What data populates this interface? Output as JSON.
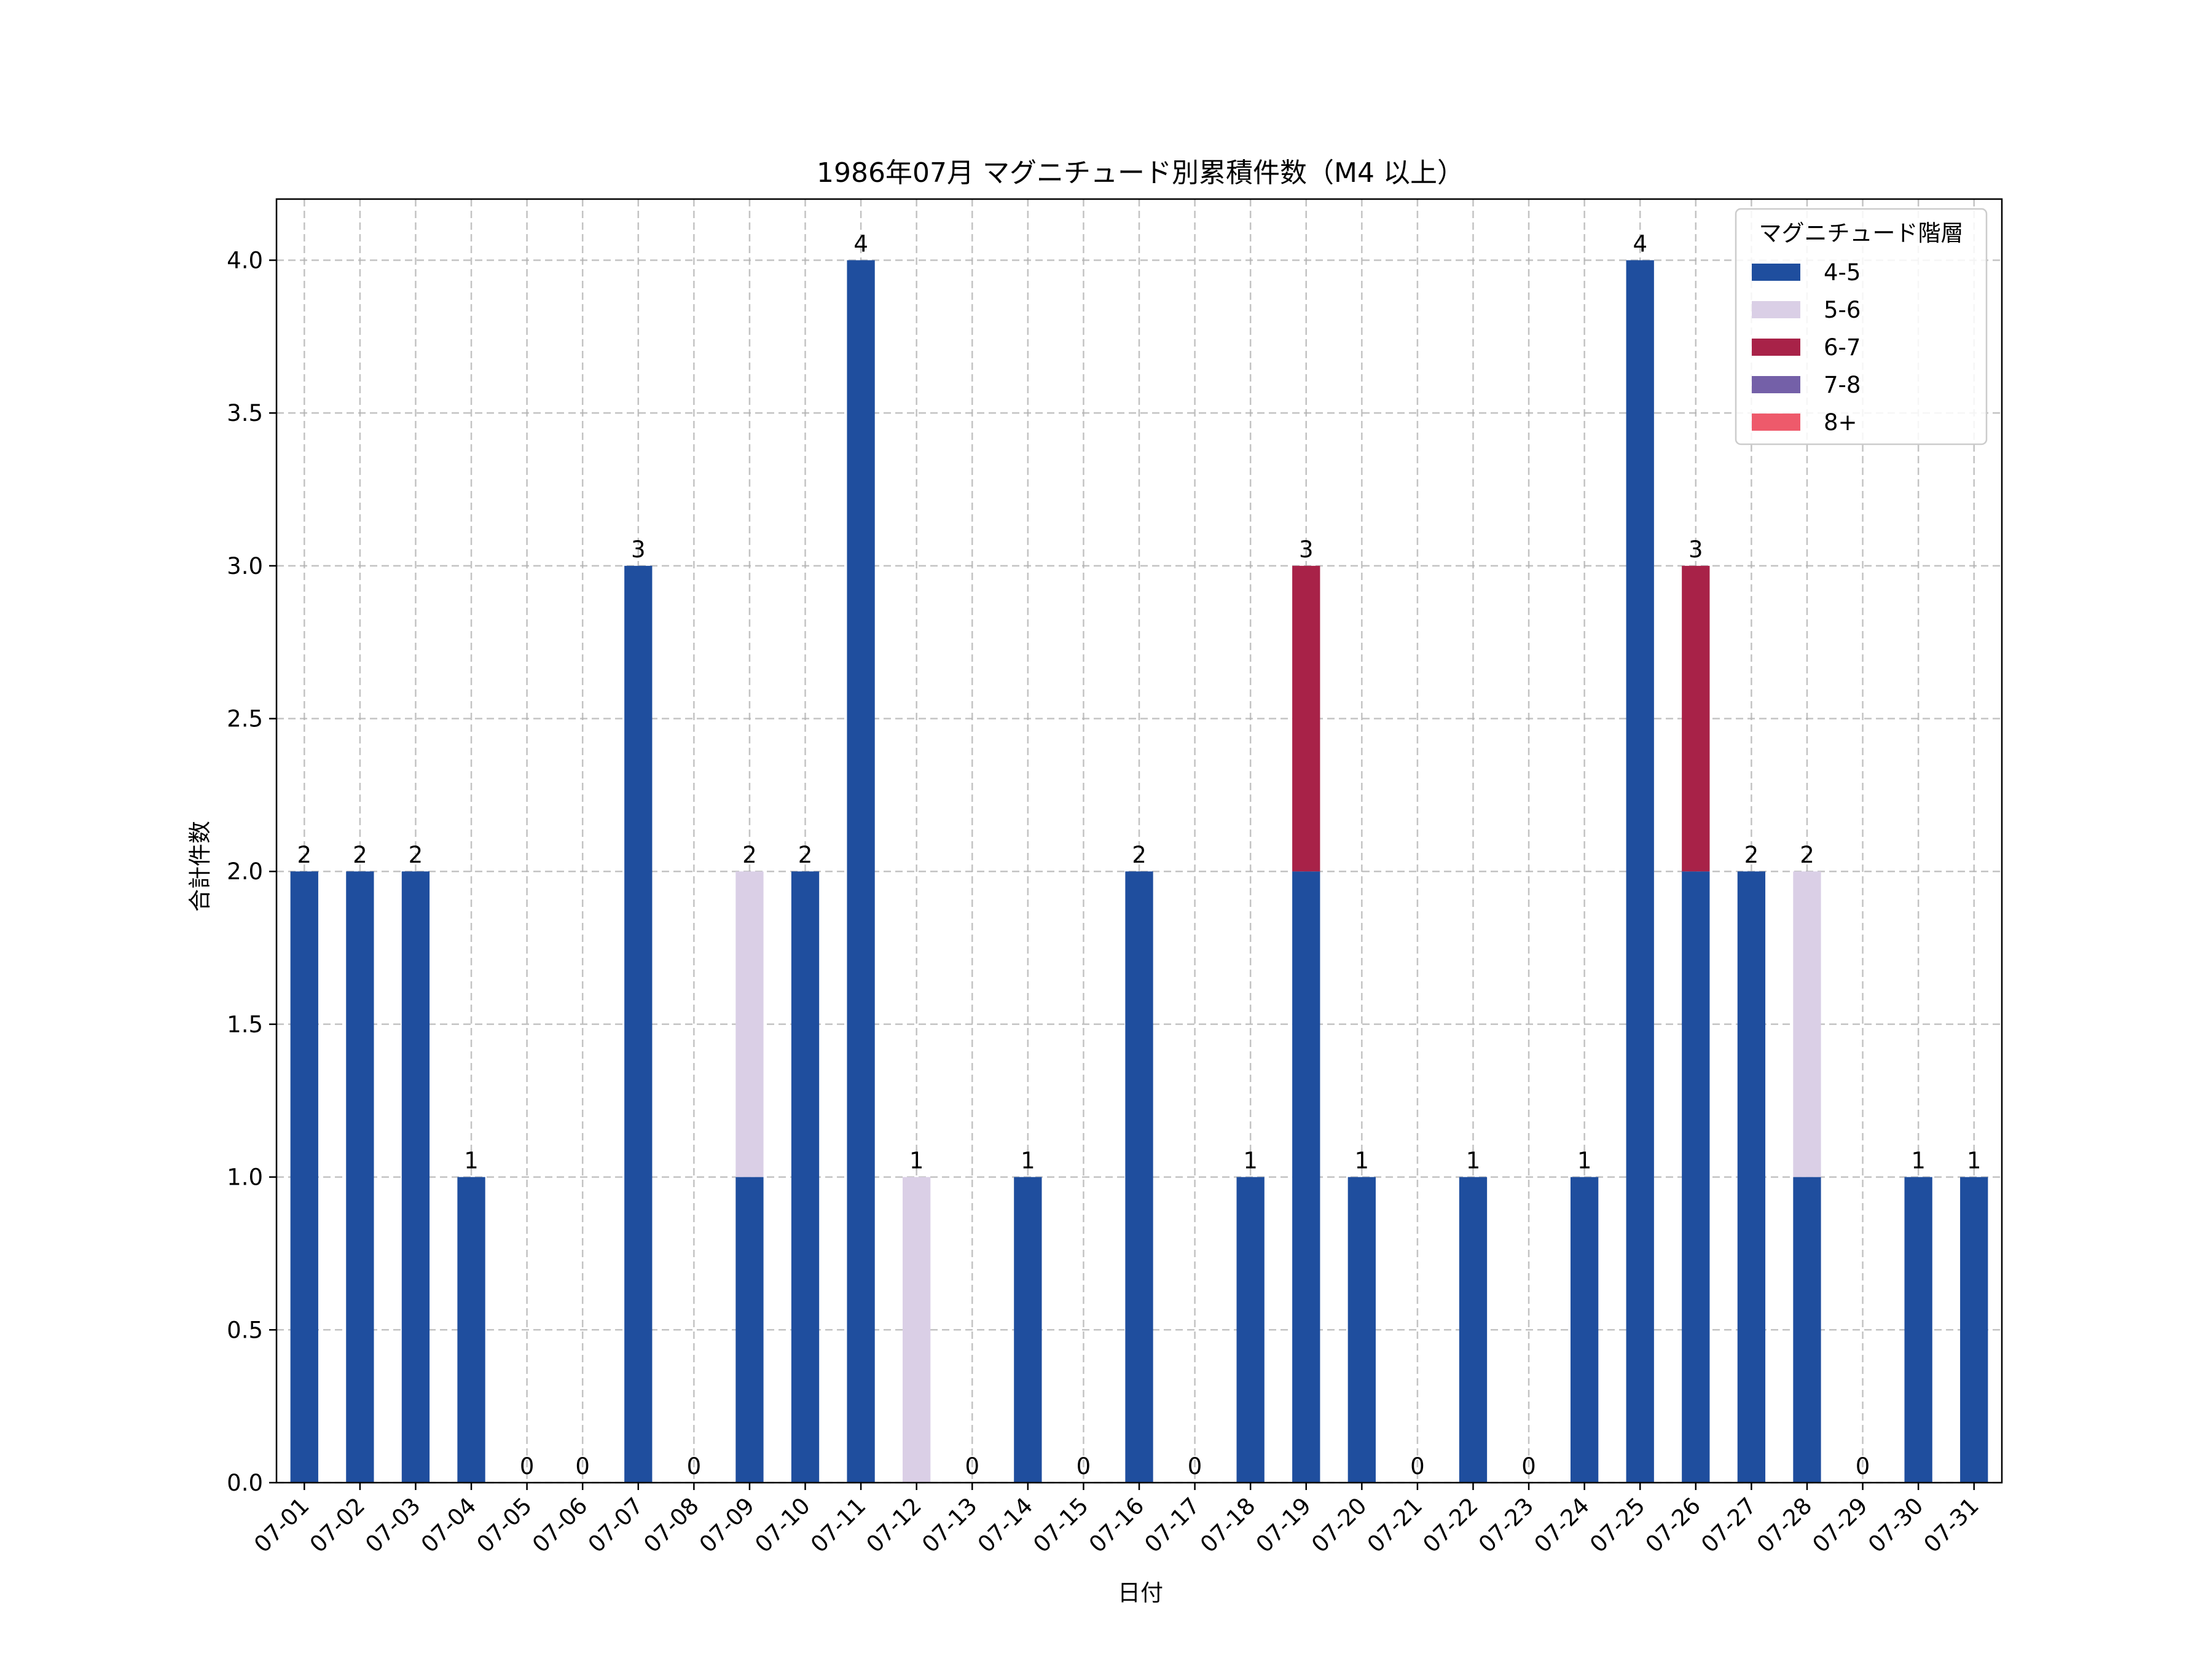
{
  "chart_data": {
    "type": "bar",
    "stacked": true,
    "title": "1986年07月 マグニチュード別累積件数（M4 以上）",
    "xlabel": "日付",
    "ylabel": "合計件数",
    "ylim": [
      0,
      4.2
    ],
    "yticks": [
      "0.0",
      "0.5",
      "1.0",
      "1.5",
      "2.0",
      "2.5",
      "3.0",
      "3.5",
      "4.0"
    ],
    "grid": true,
    "legend": {
      "title": "マグニチュード階層",
      "position": "top-right"
    },
    "categories": [
      "07-01",
      "07-02",
      "07-03",
      "07-04",
      "07-05",
      "07-06",
      "07-07",
      "07-08",
      "07-09",
      "07-10",
      "07-11",
      "07-12",
      "07-13",
      "07-14",
      "07-15",
      "07-16",
      "07-17",
      "07-18",
      "07-19",
      "07-20",
      "07-21",
      "07-22",
      "07-23",
      "07-24",
      "07-25",
      "07-26",
      "07-27",
      "07-28",
      "07-29",
      "07-30",
      "07-31"
    ],
    "series": [
      {
        "name": "4-5",
        "color": "#1f4e9e",
        "values": [
          2,
          2,
          2,
          1,
          0,
          0,
          3,
          0,
          1,
          2,
          4,
          0,
          0,
          1,
          0,
          2,
          0,
          1,
          2,
          1,
          0,
          1,
          0,
          1,
          4,
          2,
          2,
          1,
          0,
          1,
          1
        ]
      },
      {
        "name": "5-6",
        "color": "#dacfe6",
        "values": [
          0,
          0,
          0,
          0,
          0,
          0,
          0,
          0,
          1,
          0,
          0,
          1,
          0,
          0,
          0,
          0,
          0,
          0,
          0,
          0,
          0,
          0,
          0,
          0,
          0,
          0,
          0,
          1,
          0,
          0,
          0
        ]
      },
      {
        "name": "6-7",
        "color": "#a82248",
        "values": [
          0,
          0,
          0,
          0,
          0,
          0,
          0,
          0,
          0,
          0,
          0,
          0,
          0,
          0,
          0,
          0,
          0,
          0,
          1,
          0,
          0,
          0,
          0,
          0,
          0,
          1,
          0,
          0,
          0,
          0,
          0
        ]
      },
      {
        "name": "7-8",
        "color": "#7460a8",
        "values": [
          0,
          0,
          0,
          0,
          0,
          0,
          0,
          0,
          0,
          0,
          0,
          0,
          0,
          0,
          0,
          0,
          0,
          0,
          0,
          0,
          0,
          0,
          0,
          0,
          0,
          0,
          0,
          0,
          0,
          0,
          0
        ]
      },
      {
        "name": "8+",
        "color": "#ee5a6b",
        "values": [
          0,
          0,
          0,
          0,
          0,
          0,
          0,
          0,
          0,
          0,
          0,
          0,
          0,
          0,
          0,
          0,
          0,
          0,
          0,
          0,
          0,
          0,
          0,
          0,
          0,
          0,
          0,
          0,
          0,
          0,
          0
        ]
      }
    ],
    "totals": [
      "2",
      "2",
      "2",
      "1",
      "0",
      "0",
      "3",
      "0",
      "2",
      "2",
      "4",
      "1",
      "0",
      "1",
      "0",
      "2",
      "0",
      "1",
      "3",
      "1",
      "0",
      "1",
      "0",
      "1",
      "4",
      "3",
      "2",
      "2",
      "0",
      "1",
      "1"
    ]
  }
}
